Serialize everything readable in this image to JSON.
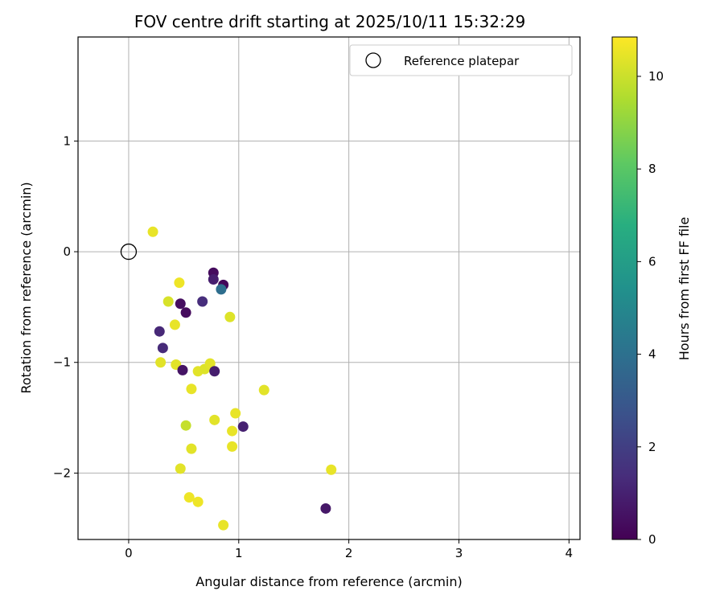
{
  "chart_data": {
    "type": "scatter",
    "title": "FOV centre drift starting at 2025/10/11 15:32:29",
    "xlabel": "Angular distance from reference (arcmin)",
    "ylabel": "Rotation from reference (arcmin)",
    "xlim": [
      -0.46,
      4.1
    ],
    "ylim": [
      -2.6,
      1.94
    ],
    "xticks": [
      0,
      1,
      2,
      3,
      4
    ],
    "yticks": [
      1,
      0,
      -1,
      -2
    ],
    "xtick_labels": [
      "0",
      "1",
      "2",
      "3",
      "4"
    ],
    "ytick_labels": [
      "1",
      "0",
      "−1",
      "−2"
    ],
    "grid": true,
    "legend": {
      "position": "top-right",
      "label": "Reference platepar"
    },
    "reference_point": {
      "x": 0,
      "y": 0
    },
    "colorbar": {
      "label": "Hours from first FF file",
      "range": [
        0,
        10.85
      ],
      "ticks": [
        0,
        2,
        4,
        6,
        8,
        10
      ],
      "tick_labels": [
        "0",
        "2",
        "4",
        "6",
        "8",
        "10"
      ],
      "colormap": "viridis"
    },
    "points": [
      {
        "x": 0.22,
        "y": 0.18,
        "h": 10.5
      },
      {
        "x": 0.46,
        "y": -0.28,
        "h": 10.6
      },
      {
        "x": 0.36,
        "y": -0.45,
        "h": 10.2
      },
      {
        "x": 0.42,
        "y": -0.66,
        "h": 10.5
      },
      {
        "x": 0.92,
        "y": -0.59,
        "h": 10.3
      },
      {
        "x": 0.29,
        "y": -1.0,
        "h": 10.4
      },
      {
        "x": 0.43,
        "y": -1.02,
        "h": 10.4
      },
      {
        "x": 0.63,
        "y": -1.08,
        "h": 10.4
      },
      {
        "x": 0.69,
        "y": -1.06,
        "h": 10.3
      },
      {
        "x": 0.74,
        "y": -1.01,
        "h": 10.4
      },
      {
        "x": 0.57,
        "y": -1.24,
        "h": 10.5
      },
      {
        "x": 1.23,
        "y": -1.25,
        "h": 10.4
      },
      {
        "x": 0.97,
        "y": -1.46,
        "h": 10.5
      },
      {
        "x": 0.78,
        "y": -1.52,
        "h": 10.4
      },
      {
        "x": 0.52,
        "y": -1.57,
        "h": 9.9
      },
      {
        "x": 0.94,
        "y": -1.62,
        "h": 10.5
      },
      {
        "x": 0.57,
        "y": -1.78,
        "h": 10.4
      },
      {
        "x": 0.94,
        "y": -1.76,
        "h": 10.5
      },
      {
        "x": 0.47,
        "y": -1.96,
        "h": 10.4
      },
      {
        "x": 1.84,
        "y": -1.97,
        "h": 10.5
      },
      {
        "x": 0.55,
        "y": -2.22,
        "h": 10.6
      },
      {
        "x": 0.63,
        "y": -2.26,
        "h": 10.6
      },
      {
        "x": 0.86,
        "y": -2.47,
        "h": 10.5
      },
      {
        "x": 0.77,
        "y": -0.19,
        "h": 0.3
      },
      {
        "x": 0.77,
        "y": -0.25,
        "h": 0.9
      },
      {
        "x": 0.86,
        "y": -0.3,
        "h": 0.2
      },
      {
        "x": 0.84,
        "y": -0.34,
        "h": 3.9
      },
      {
        "x": 0.67,
        "y": -0.45,
        "h": 1.4
      },
      {
        "x": 0.47,
        "y": -0.47,
        "h": 0.4
      },
      {
        "x": 0.52,
        "y": -0.55,
        "h": 0.3
      },
      {
        "x": 0.28,
        "y": -0.72,
        "h": 1.2
      },
      {
        "x": 0.31,
        "y": -0.87,
        "h": 1.3
      },
      {
        "x": 0.49,
        "y": -1.07,
        "h": 0.6
      },
      {
        "x": 0.78,
        "y": -1.08,
        "h": 0.9
      },
      {
        "x": 1.04,
        "y": -1.58,
        "h": 1.0
      },
      {
        "x": 1.79,
        "y": -2.32,
        "h": 0.7
      }
    ]
  }
}
